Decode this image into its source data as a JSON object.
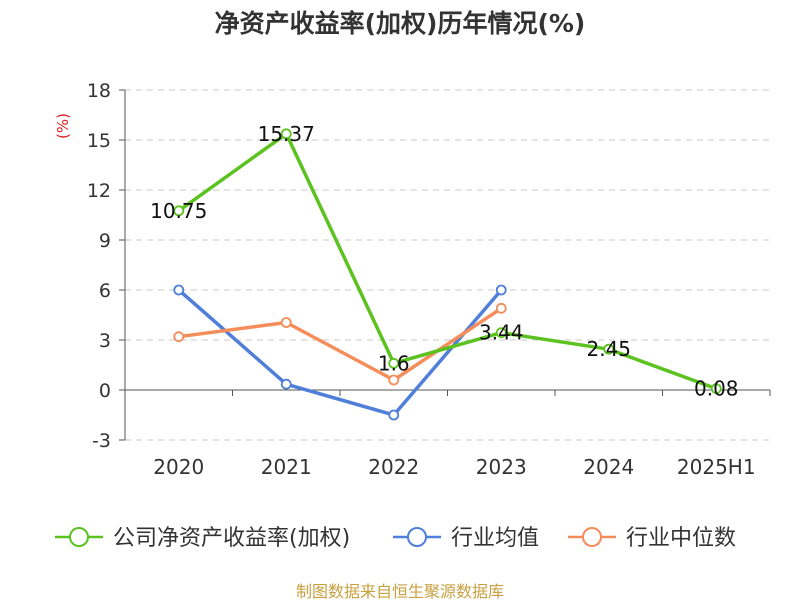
{
  "chart_data": {
    "type": "line",
    "title": "净资产收益率(加权)历年情况(%)",
    "ylabel": "(%)",
    "xlabel": "",
    "categories": [
      "2020",
      "2021",
      "2022",
      "2023",
      "2024",
      "2025H1"
    ],
    "ylim": [
      -3,
      18
    ],
    "yticks": [
      -3,
      0,
      3,
      6,
      9,
      12,
      15,
      18
    ],
    "grid": true,
    "legend_position": "bottom",
    "series": [
      {
        "name": "公司净资产收益率(加权)",
        "color": "#5cc21f",
        "values": [
          10.75,
          15.37,
          1.6,
          3.44,
          2.45,
          0.08
        ],
        "labels": [
          "10.75",
          "15.37",
          "1.6",
          "3.44",
          "2.45",
          "0.08"
        ]
      },
      {
        "name": "行业均值",
        "color": "#4f7fd9",
        "values": [
          6.0,
          0.35,
          -1.5,
          6.0,
          null,
          null
        ]
      },
      {
        "name": "行业中位数",
        "color": "#f58d5a",
        "values": [
          3.2,
          4.05,
          0.6,
          4.9,
          null,
          null
        ]
      }
    ],
    "source": "制图数据来自恒生聚源数据库"
  }
}
